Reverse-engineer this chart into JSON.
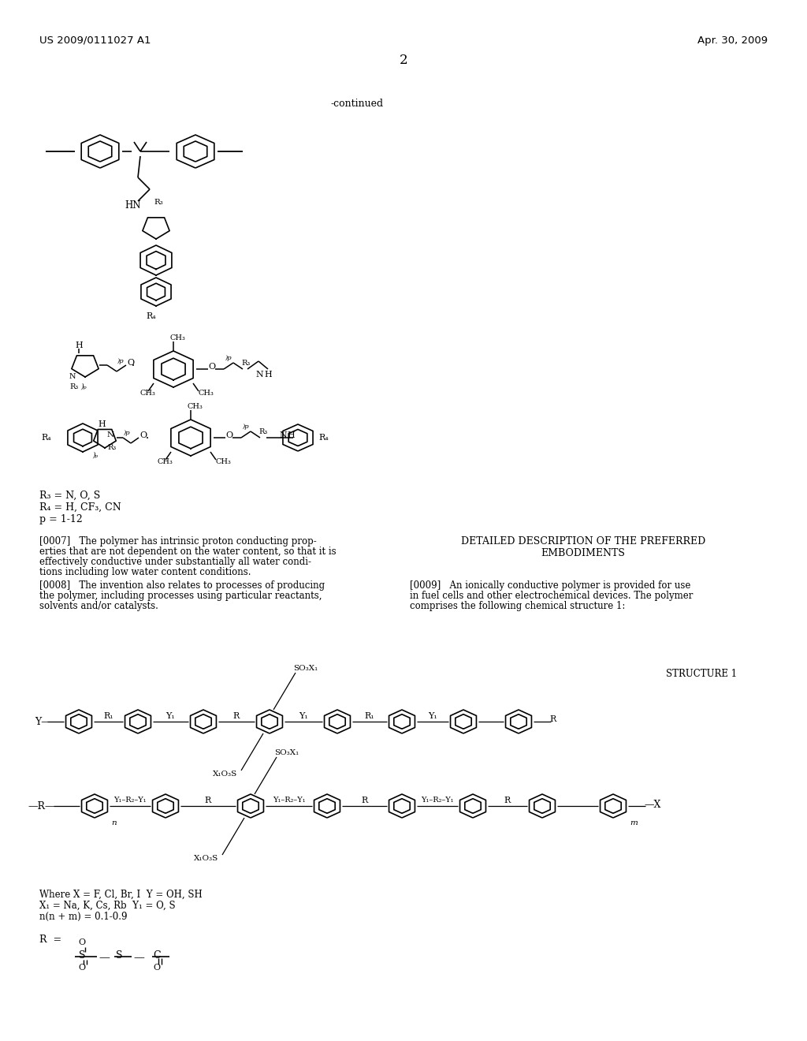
{
  "bg_color": "#ffffff",
  "header_left": "US 2009/0111027 A1",
  "header_right": "Apr. 30, 2009",
  "page_number": "2",
  "continued_text": "-continued",
  "structure_label": "STRUCTURE 1",
  "legend1": "R₃ = N, O, S",
  "legend2": "R₄ = H, CF₃, CN",
  "legend3": "p = 1-12",
  "where_text": "Where X = F, Cl, Br, I  Y = OH, SH",
  "x1_text": "X₁ = Na, K, Cs, Rb  Y₁ = O, S",
  "nm_text": "n(n + m) = 0.1-0.9",
  "para_0007_line1": "[0007]   The polymer has intrinsic proton conducting prop-",
  "para_0007_line2": "erties that are not dependent on the water content, so that it is",
  "para_0007_line3": "effectively conductive under substantially all water condi-",
  "para_0007_line4": "tions including low water content conditions.",
  "para_0008_line1": "[0008]   The invention also relates to processes of producing",
  "para_0008_line2": "the polymer, including processes using particular reactants,",
  "para_0008_line3": "solvents and/or catalysts.",
  "detailed_title_line1": "DETAILED DESCRIPTION OF THE PREFERRED",
  "detailed_title_line2": "EMBODIMENTS",
  "para_0009_line1": "[0009]   An ionically conductive polymer is provided for use",
  "para_0009_line2": "in fuel cells and other electrochemical devices. The polymer",
  "para_0009_line3": "comprises the following chemical structure 1:"
}
